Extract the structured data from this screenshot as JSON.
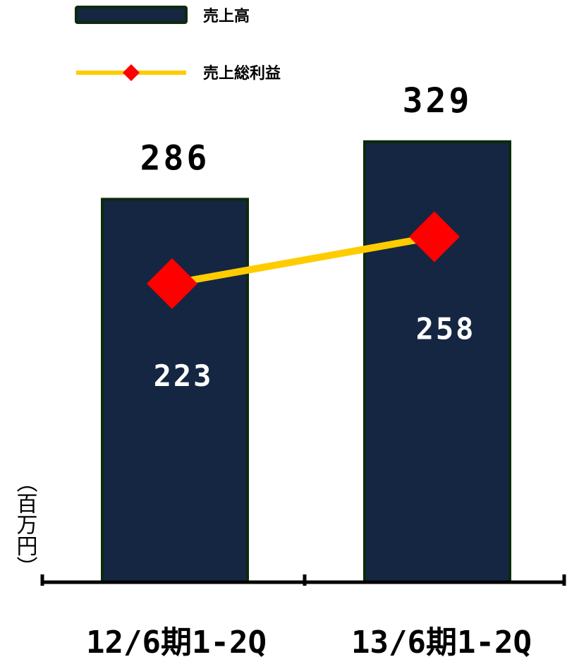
{
  "colors": {
    "bar_fill": "#142642",
    "bar_stroke": "#0d2a0d",
    "line": "#ffcc00",
    "marker": "#ff0000",
    "axis": "#000000"
  },
  "legend": {
    "bar_label": "売上高",
    "line_label": "売上総利益"
  },
  "unit_label": "（百万円）",
  "chart_data": {
    "type": "bar",
    "categories": [
      "12/6期1-2Q",
      "13/6期1-2Q"
    ],
    "series": [
      {
        "name": "売上高",
        "type": "bar",
        "values": [
          286,
          329
        ]
      },
      {
        "name": "売上総利益",
        "type": "line",
        "values": [
          223,
          258
        ]
      }
    ],
    "title": "",
    "xlabel": "",
    "ylabel": "（百万円）",
    "ylim": [
      0,
      380
    ],
    "grid": false,
    "legend_position": "top-left"
  }
}
